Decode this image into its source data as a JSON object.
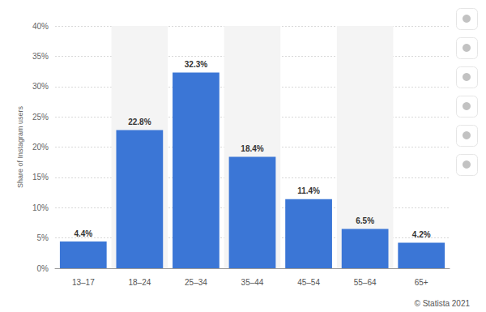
{
  "chart_data": {
    "type": "bar",
    "y_label": "Share of Instagram users",
    "source": "© Statista 2021",
    "categories": [
      "13–17",
      "18–24",
      "25–34",
      "35–44",
      "45–54",
      "55–64",
      "65+"
    ],
    "values": [
      4.4,
      22.8,
      32.3,
      18.4,
      11.4,
      6.5,
      4.2
    ],
    "value_labels": [
      "4.4%",
      "22.8%",
      "32.3%",
      "18.4%",
      "11.4%",
      "6.5%",
      "4.2%"
    ],
    "color": "#3b76d6",
    "ylim": [
      0,
      40
    ],
    "yticks": [
      {
        "value": 0,
        "label": "0%"
      },
      {
        "value": 5,
        "label": "5%"
      },
      {
        "value": 10,
        "label": "10%"
      },
      {
        "value": 15,
        "label": "15%"
      },
      {
        "value": 20,
        "label": "20%"
      },
      {
        "value": 25,
        "label": "25%"
      },
      {
        "value": 30,
        "label": "30%"
      },
      {
        "value": 35,
        "label": "35%"
      },
      {
        "value": 40,
        "label": "40%"
      }
    ],
    "grid": true,
    "data_labels": true
  }
}
